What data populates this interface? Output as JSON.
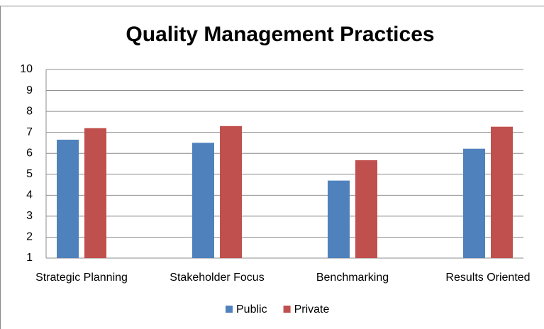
{
  "chart_data": {
    "type": "bar",
    "title": "Quality Management Practices",
    "categories": [
      "Strategic Planning",
      "Stakeholder Focus",
      "Benchmarking",
      "Results Oriented"
    ],
    "series": [
      {
        "name": "Public",
        "color": "#4f81bd",
        "values": [
          6.65,
          6.5,
          4.7,
          6.22
        ]
      },
      {
        "name": "Private",
        "color": "#c0504d",
        "values": [
          7.2,
          7.3,
          5.67,
          7.27
        ]
      }
    ],
    "ylim": [
      1,
      10
    ],
    "yticks": [
      1,
      2,
      3,
      4,
      5,
      6,
      7,
      8,
      9,
      10
    ],
    "grid": true,
    "legend": "bottom"
  }
}
